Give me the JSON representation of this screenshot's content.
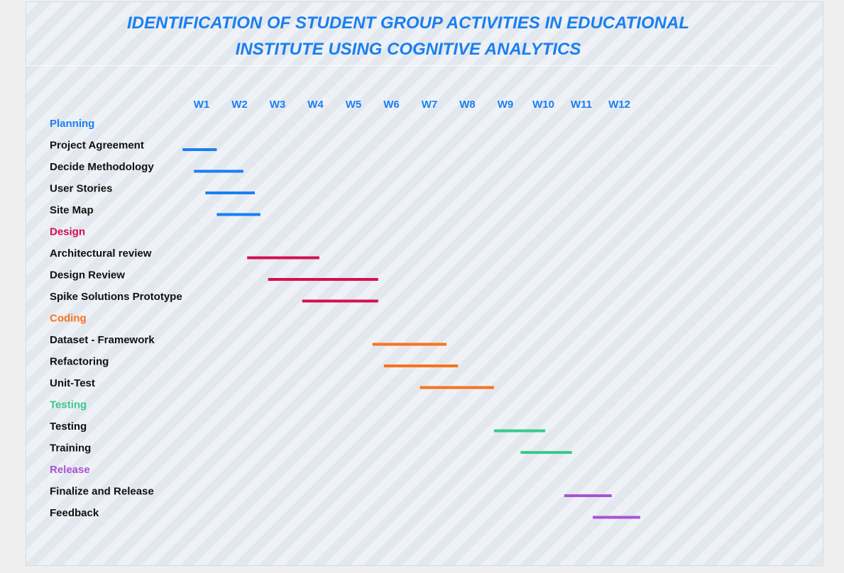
{
  "title_lines": [
    "IDENTIFICATION OF STUDENT GROUP ACTIVITIES IN EDUCATIONAL",
    "INSTITUTE USING COGNITIVE ANALYTICS"
  ],
  "chart_data": {
    "type": "gantt",
    "title": "IDENTIFICATION OF STUDENT GROUP ACTIVITIES IN EDUCATIONAL INSTITUTE USING COGNITIVE ANALYTICS",
    "weeks": [
      "W1",
      "W2",
      "W3",
      "W4",
      "W5",
      "W6",
      "W7",
      "W8",
      "W9",
      "W10",
      "W11",
      "W12"
    ],
    "xlim": [
      0.5,
      12.5
    ],
    "grid": false,
    "groups": [
      {
        "name": "Planning",
        "color": "#1a7ff0",
        "tasks": [
          {
            "name": "Project Agreement",
            "start": 0.5,
            "end": 1.4
          },
          {
            "name": "Decide Methodology",
            "start": 0.8,
            "end": 2.1
          },
          {
            "name": "User Stories",
            "start": 1.1,
            "end": 2.4
          },
          {
            "name": "Site Map",
            "start": 1.4,
            "end": 2.55
          }
        ]
      },
      {
        "name": "Design",
        "color": "#d4104f",
        "tasks": [
          {
            "name": "Architectural review",
            "start": 2.2,
            "end": 4.1
          },
          {
            "name": "Design Review",
            "start": 2.75,
            "end": 5.65
          },
          {
            "name": "Spike Solutions Prototype",
            "start": 3.65,
            "end": 5.65
          }
        ]
      },
      {
        "name": "Coding",
        "color": "#f7731c",
        "tasks": [
          {
            "name": "Dataset - Framework",
            "start": 5.5,
            "end": 7.45
          },
          {
            "name": "Refactoring",
            "start": 5.8,
            "end": 7.75
          },
          {
            "name": "Unit-Test",
            "start": 6.75,
            "end": 8.7
          }
        ]
      },
      {
        "name": "Testing",
        "color": "#3cc98a",
        "tasks": [
          {
            "name": "Testing",
            "start": 8.7,
            "end": 10.05
          },
          {
            "name": "Training",
            "start": 9.4,
            "end": 10.75
          }
        ]
      },
      {
        "name": "Release",
        "color": "#a952d8",
        "tasks": [
          {
            "name": "Finalize and Release",
            "start": 10.55,
            "end": 11.8
          },
          {
            "name": "Feedback",
            "start": 11.3,
            "end": 12.55
          }
        ]
      }
    ]
  }
}
